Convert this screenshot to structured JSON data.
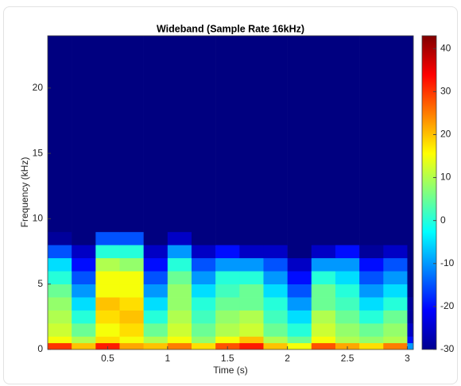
{
  "chart_data": {
    "type": "heatmap",
    "title": "Wideband (Sample Rate 16kHz)",
    "xlabel": "Time (s)",
    "ylabel": "Frequency (kHz)",
    "xlim": [
      0,
      3.05
    ],
    "xticks": [
      0.5,
      1,
      1.5,
      2,
      2.5,
      3
    ],
    "ylim": [
      0,
      24
    ],
    "yticks": [
      0,
      5,
      10,
      15,
      20
    ],
    "x_edges": [
      0,
      0.2,
      0.4,
      0.6,
      0.8,
      1.0,
      1.2,
      1.4,
      1.6,
      1.8,
      2.0,
      2.2,
      2.4,
      2.6,
      2.8,
      3.0,
      3.05
    ],
    "y_edges": [
      0,
      0.5,
      1,
      2,
      3,
      4,
      5,
      6,
      7,
      8,
      9,
      24
    ],
    "z": [
      [
        30,
        20,
        32,
        22,
        20,
        25,
        18,
        28,
        32,
        20,
        15,
        28,
        22,
        18,
        25,
        -10
      ],
      [
        15,
        10,
        18,
        15,
        10,
        15,
        8,
        15,
        20,
        10,
        5,
        15,
        10,
        8,
        10,
        -20
      ],
      [
        12,
        5,
        15,
        18,
        5,
        12,
        5,
        10,
        12,
        5,
        0,
        12,
        8,
        5,
        8,
        -25
      ],
      [
        10,
        0,
        18,
        20,
        0,
        10,
        2,
        8,
        10,
        2,
        -5,
        10,
        5,
        0,
        5,
        -28
      ],
      [
        8,
        -5,
        20,
        18,
        -5,
        8,
        0,
        5,
        5,
        0,
        -10,
        5,
        2,
        -5,
        0,
        -28
      ],
      [
        5,
        -10,
        15,
        15,
        -10,
        8,
        -5,
        2,
        5,
        -5,
        -15,
        5,
        0,
        -10,
        -5,
        -30
      ],
      [
        0,
        -15,
        15,
        15,
        -15,
        5,
        -10,
        0,
        0,
        -10,
        -20,
        0,
        -5,
        -15,
        -10,
        -30
      ],
      [
        -5,
        -20,
        10,
        8,
        -20,
        0,
        -15,
        -10,
        -10,
        -15,
        -25,
        -10,
        -10,
        -20,
        -15,
        -30
      ],
      [
        -15,
        -25,
        0,
        0,
        -25,
        -10,
        -25,
        -20,
        -25,
        -25,
        -30,
        -25,
        -20,
        -28,
        -25,
        -30
      ],
      [
        -28,
        -30,
        -15,
        -15,
        -30,
        -25,
        -30,
        -30,
        -30,
        -30,
        -30,
        -30,
        -30,
        -30,
        -30,
        -30
      ],
      [
        -30,
        -30,
        -30,
        -30,
        -30,
        -30,
        -30,
        -30,
        -30,
        -30,
        -30,
        -30,
        -30,
        -30,
        -30,
        -30
      ]
    ],
    "colormap": "jet",
    "clim": [
      -30,
      43
    ],
    "cticks": [
      -30,
      -20,
      -10,
      0,
      10,
      20,
      30,
      40
    ]
  }
}
